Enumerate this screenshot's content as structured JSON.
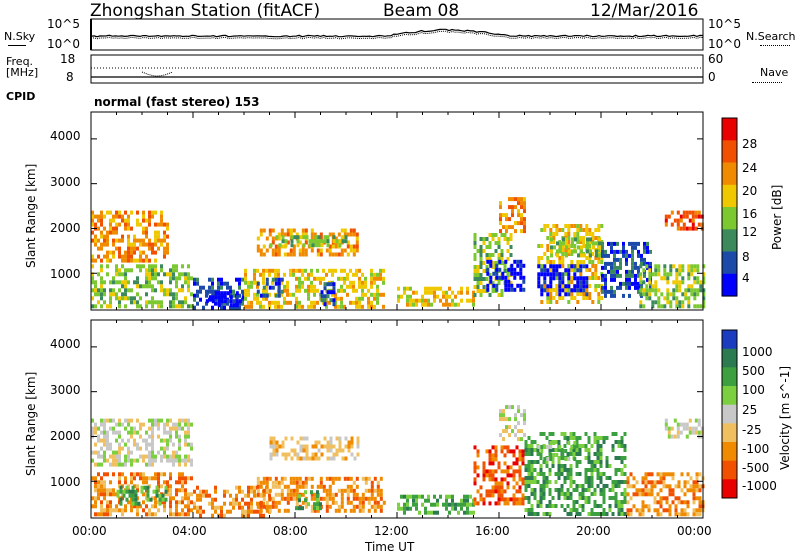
{
  "header": {
    "title": "Zhongshan Station (fitACF)",
    "beam": "Beam 08",
    "date": "12/Mar/2016"
  },
  "noise_panel": {
    "left_label": "N.Sky",
    "left_ticks": [
      "10^5",
      "10^0"
    ],
    "right_ticks": [
      "10^5",
      "10^0"
    ],
    "right_label": "N.Search"
  },
  "freq_panel": {
    "left_label_1": "Freq.",
    "left_label_2": "[MHz]",
    "left_ticks": [
      "18",
      "8"
    ],
    "right_ticks": [
      "60",
      "0"
    ],
    "right_label": "Nave"
  },
  "cpid": {
    "label": "CPID",
    "value": "normal (fast stereo) 153"
  },
  "x_axis": {
    "label": "Time UT",
    "ticks": [
      "00:00",
      "04:00",
      "08:00",
      "12:00",
      "16:00",
      "20:00",
      "00:00"
    ]
  },
  "chart_data": [
    {
      "type": "heatmap",
      "panel": "power",
      "ylabel": "Slant Range [km]",
      "ylim": [
        180,
        4600
      ],
      "yticks": [
        "4000",
        "3000",
        "2000",
        "1000"
      ],
      "colorbar_label": "Power [dB]",
      "colorbar_ticks": [
        "28",
        "24",
        "20",
        "16",
        "12",
        "8",
        "4"
      ],
      "colorbar_colors": [
        "#e80000",
        "#f05000",
        "#f08a00",
        "#f0c800",
        "#7cc830",
        "#3c8a5c",
        "#1c4aa8",
        "#0000ff"
      ],
      "regions": [
        {
          "t0": 0.0,
          "t1": 3.0,
          "r0": 1300,
          "r1": 2400,
          "level": 2
        },
        {
          "t0": 0.0,
          "t1": 4.0,
          "r0": 300,
          "r1": 1200,
          "level": 4
        },
        {
          "t0": 4.0,
          "t1": 6.0,
          "r0": 250,
          "r1": 900,
          "level": 6
        },
        {
          "t0": 4.5,
          "t1": 6.0,
          "r0": 250,
          "r1": 600,
          "level": 7
        },
        {
          "t0": 6.5,
          "t1": 10.5,
          "r0": 1400,
          "r1": 2000,
          "level": 2
        },
        {
          "t0": 7.0,
          "t1": 10.0,
          "r0": 1650,
          "r1": 1850,
          "level": 4
        },
        {
          "t0": 6.0,
          "t1": 11.5,
          "r0": 250,
          "r1": 1100,
          "level": 3
        },
        {
          "t0": 6.5,
          "t1": 7.5,
          "r0": 500,
          "r1": 900,
          "level": 6
        },
        {
          "t0": 9.0,
          "t1": 9.5,
          "r0": 350,
          "r1": 800,
          "level": 6
        },
        {
          "t0": 12.0,
          "t1": 15.0,
          "r0": 300,
          "r1": 700,
          "level": 3
        },
        {
          "t0": 15.0,
          "t1": 16.5,
          "r0": 500,
          "r1": 1900,
          "level": 4
        },
        {
          "t0": 15.5,
          "t1": 17.0,
          "r0": 600,
          "r1": 1300,
          "level": 7
        },
        {
          "t0": 16.0,
          "t1": 17.0,
          "r0": 1900,
          "r1": 2700,
          "level": 2
        },
        {
          "t0": 17.5,
          "t1": 20.0,
          "r0": 400,
          "r1": 2100,
          "level": 3
        },
        {
          "t0": 18.0,
          "t1": 20.0,
          "r0": 1400,
          "r1": 1800,
          "level": 4
        },
        {
          "t0": 17.5,
          "t1": 19.5,
          "r0": 500,
          "r1": 1200,
          "level": 7
        },
        {
          "t0": 20.0,
          "t1": 22.0,
          "r0": 500,
          "r1": 1700,
          "level": 6
        },
        {
          "t0": 21.5,
          "t1": 24.0,
          "r0": 300,
          "r1": 1200,
          "level": 4
        },
        {
          "t0": 22.5,
          "t1": 24.0,
          "r0": 2000,
          "r1": 2400,
          "level": 1
        }
      ]
    },
    {
      "type": "heatmap",
      "panel": "velocity",
      "ylabel": "Slant Range [km]",
      "ylim": [
        180,
        4600
      ],
      "yticks": [
        "4000",
        "3000",
        "2000",
        "1000"
      ],
      "colorbar_label": "Velocity [m s^-1]",
      "colorbar_ticks": [
        "1000",
        "500",
        "100",
        "25",
        "-25",
        "-100",
        "-500",
        "-1000"
      ],
      "colorbar_colors": [
        "#1c3cc0",
        "#2c7a50",
        "#3ca040",
        "#7cd040",
        "#c8c8c8",
        "#f0c060",
        "#f08a00",
        "#f05000",
        "#e80000"
      ],
      "regions": [
        {
          "t0": 0.0,
          "t1": 4.0,
          "r0": 1400,
          "r1": 2400,
          "level": 4
        },
        {
          "t0": 0.0,
          "t1": 4.0,
          "r0": 300,
          "r1": 1200,
          "level": 6
        },
        {
          "t0": 1.0,
          "t1": 3.0,
          "r0": 500,
          "r1": 900,
          "level": 2
        },
        {
          "t0": 4.0,
          "t1": 7.0,
          "r0": 250,
          "r1": 900,
          "level": 6
        },
        {
          "t0": 7.0,
          "t1": 10.5,
          "r0": 1500,
          "r1": 2000,
          "level": 5
        },
        {
          "t0": 6.5,
          "t1": 11.5,
          "r0": 300,
          "r1": 1100,
          "level": 6
        },
        {
          "t0": 8.0,
          "t1": 9.0,
          "r0": 400,
          "r1": 800,
          "level": 2
        },
        {
          "t0": 12.0,
          "t1": 15.0,
          "r0": 300,
          "r1": 700,
          "level": 2
        },
        {
          "t0": 15.0,
          "t1": 17.0,
          "r0": 500,
          "r1": 1800,
          "level": 7
        },
        {
          "t0": 16.0,
          "t1": 17.0,
          "r0": 1900,
          "r1": 2700,
          "level": 4
        },
        {
          "t0": 17.0,
          "t1": 21.0,
          "r0": 300,
          "r1": 2100,
          "level": 2
        },
        {
          "t0": 17.5,
          "t1": 19.0,
          "r0": 1500,
          "r1": 1900,
          "level": 3
        },
        {
          "t0": 21.0,
          "t1": 24.0,
          "r0": 300,
          "r1": 1200,
          "level": 6
        },
        {
          "t0": 22.5,
          "t1": 24.0,
          "r0": 2000,
          "r1": 2400,
          "level": 4
        }
      ]
    }
  ]
}
